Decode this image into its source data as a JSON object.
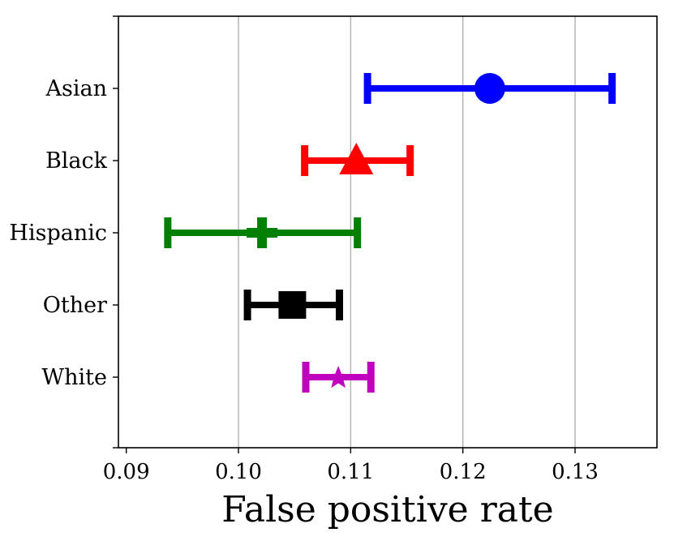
{
  "chart_data": {
    "type": "errorbar",
    "title": "",
    "xlabel": "False positive rate",
    "ylabel": "",
    "xlim": [
      0.0893,
      0.1373
    ],
    "xticks": [
      0.09,
      0.1,
      0.11,
      0.12,
      0.13
    ],
    "xtick_labels": [
      "0.09",
      "0.10",
      "0.11",
      "0.12",
      "0.13"
    ],
    "grid": "vertical",
    "categories": [
      "Asian",
      "Black",
      "Hispanic",
      "Other",
      "White"
    ],
    "series": [
      {
        "name": "Asian",
        "value": 0.1224,
        "lower": 0.1115,
        "upper": 0.1333,
        "color": "#0000ff",
        "marker": "circle"
      },
      {
        "name": "Black",
        "value": 0.1105,
        "lower": 0.1059,
        "upper": 0.1153,
        "color": "#ff0000",
        "marker": "triangle"
      },
      {
        "name": "Hispanic",
        "value": 0.1021,
        "lower": 0.0937,
        "upper": 0.1106,
        "color": "#008000",
        "marker": "plus"
      },
      {
        "name": "Other",
        "value": 0.1048,
        "lower": 0.1008,
        "upper": 0.109,
        "color": "#000000",
        "marker": "square"
      },
      {
        "name": "White",
        "value": 0.1089,
        "lower": 0.106,
        "upper": 0.1118,
        "color": "#bf00bf",
        "marker": "star"
      }
    ]
  }
}
